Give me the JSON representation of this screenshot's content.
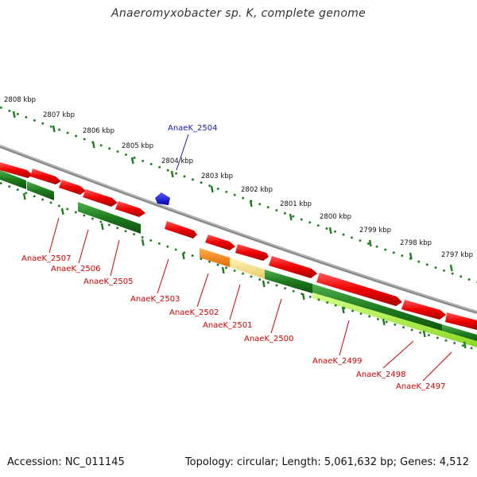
{
  "title": "Anaeromyxobacter sp. K, complete genome",
  "footer": {
    "accession": "Accession: NC_011145",
    "summary": "Topology: circular; Length: 5,061,632 bp; Genes: 4,512"
  },
  "colors": {
    "forward": "#ee0000",
    "reverse": "#1e7a1e",
    "highlight": "#1a1ad8",
    "orange": "#ff8800",
    "pale": "#f3e08a",
    "lime": "#aaf03a",
    "backbone": "#8a8a8a",
    "ticks": "#1e7a1e",
    "label_red": "#cc0000",
    "label_blue": "#1a1aaa"
  },
  "kbp_labels": [
    "2808 kbp",
    "2807 kbp",
    "2806 kbp",
    "2805 kbp",
    "2804 kbp",
    "2803 kbp",
    "2802 kbp",
    "2801 kbp",
    "2800 kbp",
    "2799 kbp",
    "2798 kbp",
    "2797 kbp"
  ],
  "gene_labels": {
    "g2504": "AnaeK_2504",
    "g2507": "AnaeK_2507",
    "g2506": "AnaeK_2506",
    "g2505": "AnaeK_2505",
    "g2503": "AnaeK_2503",
    "g2502": "AnaeK_2502",
    "g2501": "AnaeK_2501",
    "g2500": "AnaeK_2500",
    "g2499": "AnaeK_2499",
    "g2498": "AnaeK_2498",
    "g2497": "AnaeK_2497"
  }
}
